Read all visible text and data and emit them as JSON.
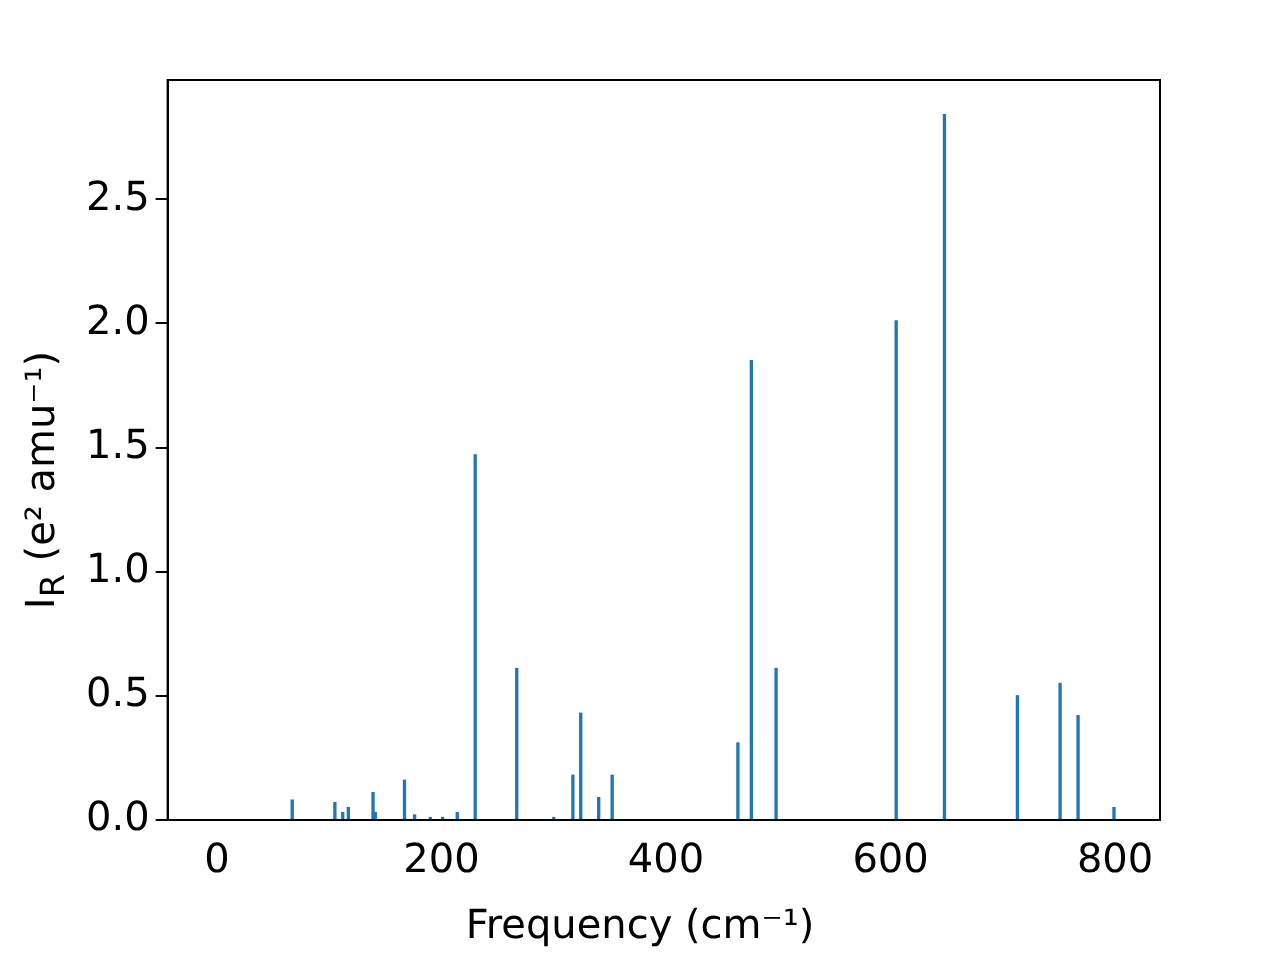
{
  "chart_data": {
    "type": "bar",
    "xlabel": "Frequency (cm⁻¹)",
    "ylabel": "I$_{R}$ (e² amu⁻¹)",
    "x": [
      67,
      105,
      112,
      117,
      139,
      141,
      167,
      176,
      190,
      201,
      214,
      230,
      267,
      300,
      317,
      324,
      340,
      352,
      464,
      476,
      498,
      605,
      648,
      713,
      751,
      767,
      799
    ],
    "values": [
      0.08,
      0.07,
      0.03,
      0.05,
      0.11,
      0.03,
      0.16,
      0.02,
      0.01,
      0.01,
      0.03,
      1.47,
      0.61,
      0.01,
      0.18,
      0.43,
      0.09,
      0.18,
      0.31,
      1.85,
      0.61,
      2.01,
      2.84,
      0.5,
      0.55,
      0.42,
      0.05
    ],
    "color": "#1f77b4",
    "xlim": [
      -44,
      840
    ],
    "xticks": [
      0,
      200,
      400,
      600,
      800
    ],
    "ylim": [
      0,
      2.98
    ],
    "yticks": [
      {
        "value": 0,
        "label": "0.0"
      },
      {
        "value": 0.5,
        "label": "0.5"
      },
      {
        "value": 1,
        "label": "1.0"
      },
      {
        "value": 1.5,
        "label": "1.5"
      },
      {
        "value": 2,
        "label": "2.0"
      },
      {
        "value": 2.5,
        "label": "2.5"
      }
    ],
    "grid": false,
    "legend": false
  }
}
